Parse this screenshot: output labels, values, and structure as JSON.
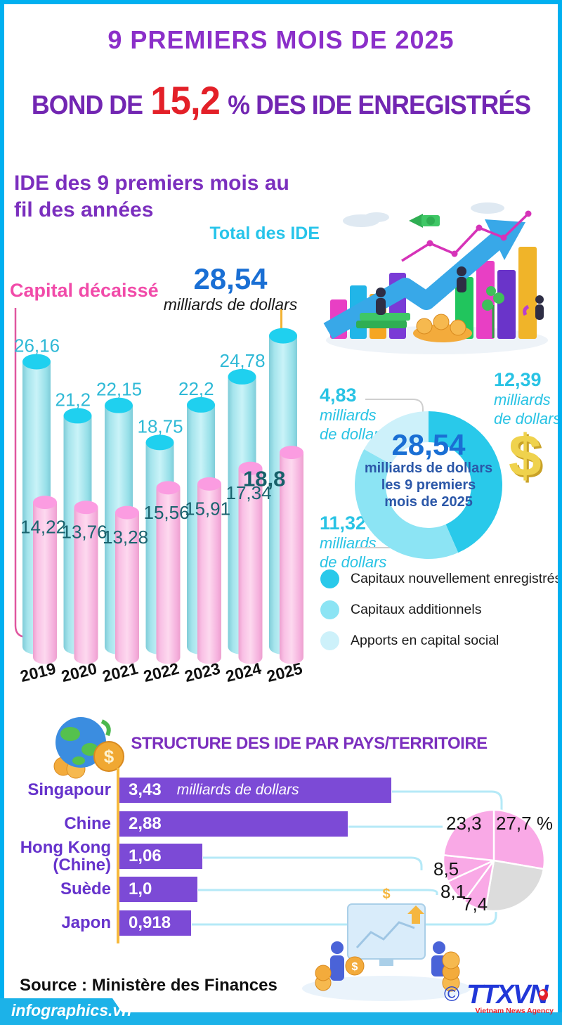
{
  "page": {
    "border_color": "#00b0f0",
    "accent_cyan": "#27c4ea",
    "accent_pink": "#f14ba9",
    "accent_purple": "#7b2fbe"
  },
  "header": {
    "title": "9 PREMIERS MOIS DE 2025",
    "subtitle_prefix": "BOND DE",
    "subtitle_value": "15,2",
    "subtitle_suffix": "% DES IDE ENREGISTRÉS"
  },
  "yearly_section": {
    "heading_line1": "IDE des 9 premiers mois au",
    "heading_line2": "fil des années",
    "series_total_label": "Total des IDE",
    "series_disbursed_label": "Capital décaissé",
    "annotation_value": "28,54",
    "annotation_unit": "milliards de dollars"
  },
  "donut_section": {
    "callouts": [
      {
        "value": "4,83",
        "unit_line1": "milliards",
        "unit_line2": "de dollars"
      },
      {
        "value": "12,39",
        "unit_line1": "milliards",
        "unit_line2": "de dollars"
      },
      {
        "value": "11,32",
        "unit_line1": "milliards",
        "unit_line2": "de dollars"
      }
    ],
    "center_value": "28,54",
    "center_line1": "milliards de dollars",
    "center_line2": "les 9 premiers",
    "center_line3": "mois de 2025",
    "dollar_sign": "$",
    "legend": [
      {
        "label": "Capitaux nouvellement enregistrés",
        "color": "#29c9ea"
      },
      {
        "label": "Capitaux additionnels",
        "color": "#8ce4f4"
      },
      {
        "label": "Apports en capital social",
        "color": "#cdf1fa"
      }
    ]
  },
  "countries_section": {
    "title": "STRUCTURE DES IDE PAR PAYS/TERRITOIRE",
    "unit_inline": "milliards de dollars"
  },
  "footer": {
    "source": "Source : Ministère des Finances",
    "site": "infographics.vn",
    "copyright": "©",
    "agency_name": "TTXVN",
    "agency_sub": "Vietnam News Agency"
  },
  "chart_data": [
    {
      "type": "bar",
      "title": "IDE des 9 premiers mois au fil des années",
      "unit": "milliards de dollars",
      "categories": [
        "2019",
        "2020",
        "2021",
        "2022",
        "2023",
        "2024",
        "2025"
      ],
      "series": [
        {
          "name": "Total des IDE",
          "color": "#1fd0ef",
          "values": [
            26.16,
            21.2,
            22.15,
            18.75,
            22.2,
            24.78,
            28.54
          ],
          "labels": [
            "26,16",
            "21,2",
            "22,15",
            "18,75",
            "22,2",
            "24,78",
            "28,54"
          ]
        },
        {
          "name": "Capital décaissé",
          "color": "#fb9ce1",
          "values": [
            14.22,
            13.76,
            13.28,
            15.56,
            15.91,
            17.34,
            18.8
          ],
          "labels": [
            "14,22",
            "13,76",
            "13,28",
            "15,56",
            "15,91",
            "17,34",
            "18,8"
          ]
        }
      ]
    },
    {
      "type": "pie",
      "subtype": "donut",
      "title": "28,54 milliards de dollars les 9 premiers mois de 2025",
      "total_display": "28,54",
      "slices": [
        {
          "label": "Capitaux nouvellement enregistrés",
          "value": 12.39,
          "display": "12,39",
          "color": "#29c9ea"
        },
        {
          "label": "Capitaux additionnels",
          "value": 11.32,
          "display": "11,32",
          "color": "#8ce4f4"
        },
        {
          "label": "Apports en capital social",
          "value": 4.83,
          "display": "4,83",
          "color": "#cdf1fa"
        }
      ]
    },
    {
      "type": "bar",
      "title": "STRUCTURE DES IDE PAR PAYS/TERRITOIRE",
      "unit": "milliards de dollars",
      "categories": [
        "Singapour",
        "Chine",
        "Hong Kong (Chine)",
        "Suède",
        "Japon"
      ],
      "category_lines": [
        [
          "Singapour"
        ],
        [
          "Chine"
        ],
        [
          "Hong Kong",
          "(Chine)"
        ],
        [
          "Suède"
        ],
        [
          "Japon"
        ]
      ],
      "values": [
        3.43,
        2.88,
        1.06,
        1.0,
        0.918
      ],
      "labels": [
        "3,43",
        "2,88",
        "1,06",
        "1,0",
        "0,918"
      ]
    },
    {
      "type": "pie",
      "title": "Parts des IDE par pays/territoire (%)",
      "slices": [
        {
          "label": "Singapour",
          "value": 27.7,
          "display": "27,7 %",
          "color": "#f9a9e6"
        },
        {
          "label": "",
          "value": 25.0,
          "display": "",
          "color": "#dcdcdc"
        },
        {
          "label": "Japon",
          "value": 7.4,
          "display": "7,4",
          "color": "#f9a9e6"
        },
        {
          "label": "Suède",
          "value": 8.1,
          "display": "8,1",
          "color": "#f9a9e6"
        },
        {
          "label": "Hong Kong (Chine)",
          "value": 8.5,
          "display": "8,5",
          "color": "#f9a9e6"
        },
        {
          "label": "Chine",
          "value": 23.3,
          "display": "23,3",
          "color": "#f9a9e6"
        }
      ]
    }
  ]
}
